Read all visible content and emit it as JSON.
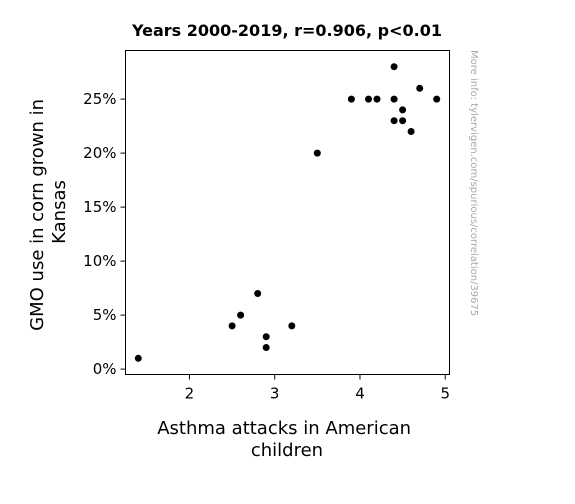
{
  "chart_data": {
    "type": "scatter",
    "title": "Years 2000-2019, r=0.906, p<0.01",
    "xlabel_lines": [
      "Asthma attacks in American",
      "children"
    ],
    "ylabel_lines": [
      "GMO use in corn grown in",
      "Kansas"
    ],
    "xlim": [
      1.25,
      5.05
    ],
    "ylim": [
      -0.5,
      29.5
    ],
    "x_ticks": [
      {
        "value": 2,
        "label": "2"
      },
      {
        "value": 3,
        "label": "3"
      },
      {
        "value": 4,
        "label": "4"
      },
      {
        "value": 5,
        "label": "5"
      }
    ],
    "y_ticks": [
      {
        "value": 0,
        "label": "0%"
      },
      {
        "value": 5,
        "label": "5%"
      },
      {
        "value": 10,
        "label": "10%"
      },
      {
        "value": 15,
        "label": "15%"
      },
      {
        "value": 20,
        "label": "20%"
      },
      {
        "value": 25,
        "label": "25%"
      }
    ],
    "grid": false,
    "marker_color": "#000000",
    "points": [
      {
        "x": 1.4,
        "y": 1
      },
      {
        "x": 2.5,
        "y": 4
      },
      {
        "x": 2.6,
        "y": 5
      },
      {
        "x": 2.8,
        "y": 7
      },
      {
        "x": 2.9,
        "y": 3
      },
      {
        "x": 2.9,
        "y": 2
      },
      {
        "x": 3.2,
        "y": 4
      },
      {
        "x": 3.5,
        "y": 20
      },
      {
        "x": 3.9,
        "y": 25
      },
      {
        "x": 4.1,
        "y": 25
      },
      {
        "x": 4.2,
        "y": 25
      },
      {
        "x": 4.4,
        "y": 28
      },
      {
        "x": 4.4,
        "y": 25
      },
      {
        "x": 4.4,
        "y": 23
      },
      {
        "x": 4.5,
        "y": 24
      },
      {
        "x": 4.5,
        "y": 23
      },
      {
        "x": 4.6,
        "y": 22
      },
      {
        "x": 4.7,
        "y": 26
      },
      {
        "x": 4.9,
        "y": 25
      }
    ],
    "watermark": "More info: tylervigen.com/spurious/correlation/39675",
    "watermark_color": "#aaaaaa"
  }
}
